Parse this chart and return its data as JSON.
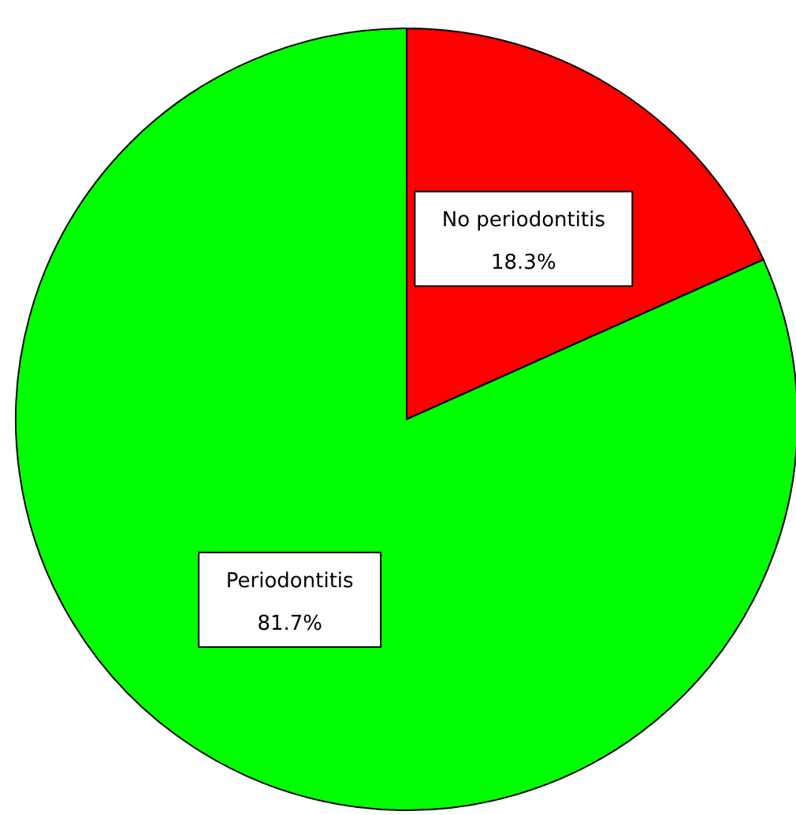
{
  "chart_data": {
    "type": "pie",
    "categories": [
      "No periodontitis",
      "Periodontitis"
    ],
    "values": [
      18.3,
      81.7
    ],
    "colors": [
      "#ff0000",
      "#00ff00"
    ],
    "value_labels": [
      "18.3%",
      "81.7%"
    ]
  }
}
